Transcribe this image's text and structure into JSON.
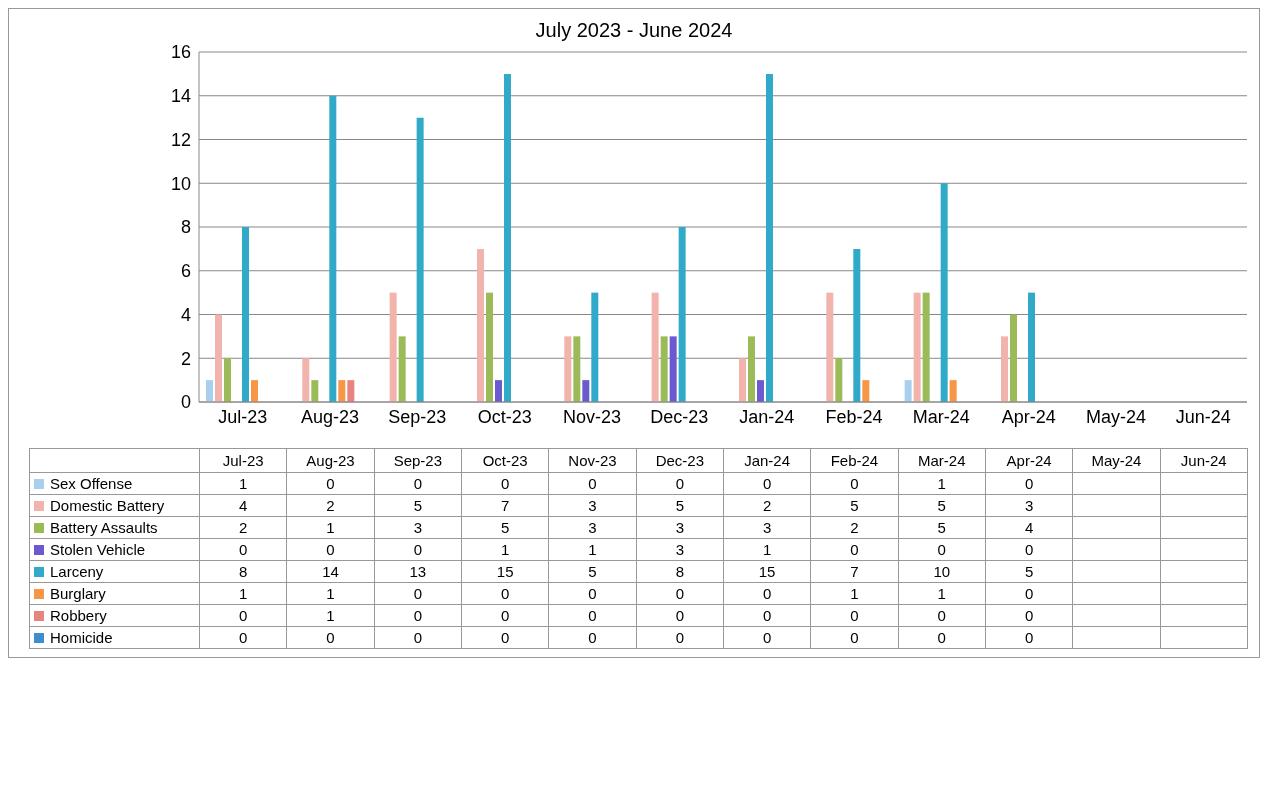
{
  "chart_data": {
    "type": "bar",
    "title": "July 2023 - June 2024",
    "categories": [
      "Jul-23",
      "Aug-23",
      "Sep-23",
      "Oct-23",
      "Nov-23",
      "Dec-23",
      "Jan-24",
      "Feb-24",
      "Mar-24",
      "Apr-24",
      "May-24",
      "Jun-24"
    ],
    "series": [
      {
        "name": "Sex Offense",
        "color": "#a9cfee",
        "values": [
          1,
          0,
          0,
          0,
          0,
          0,
          0,
          0,
          1,
          0,
          null,
          null
        ]
      },
      {
        "name": "Domestic Battery",
        "color": "#f2b3ad",
        "values": [
          4,
          2,
          5,
          7,
          3,
          5,
          2,
          5,
          5,
          3,
          null,
          null
        ]
      },
      {
        "name": "Battery Assaults",
        "color": "#9bbb59",
        "values": [
          2,
          1,
          3,
          5,
          3,
          3,
          3,
          2,
          5,
          4,
          null,
          null
        ]
      },
      {
        "name": "Stolen Vehicle",
        "color": "#6a5acd",
        "values": [
          0,
          0,
          0,
          1,
          1,
          3,
          1,
          0,
          0,
          0,
          null,
          null
        ]
      },
      {
        "name": "Larceny",
        "color": "#31a9c8",
        "values": [
          8,
          14,
          13,
          15,
          5,
          8,
          15,
          7,
          10,
          5,
          null,
          null
        ]
      },
      {
        "name": "Burglary",
        "color": "#f79646",
        "values": [
          1,
          1,
          0,
          0,
          0,
          0,
          0,
          1,
          1,
          0,
          null,
          null
        ]
      },
      {
        "name": "Robbery",
        "color": "#e8847f",
        "values": [
          0,
          1,
          0,
          0,
          0,
          0,
          0,
          0,
          0,
          0,
          null,
          null
        ]
      },
      {
        "name": "Homicide",
        "color": "#3b8fd0",
        "values": [
          0,
          0,
          0,
          0,
          0,
          0,
          0,
          0,
          0,
          0,
          null,
          null
        ]
      }
    ],
    "ylim": [
      0,
      16
    ],
    "yticks": [
      0,
      2,
      4,
      6,
      8,
      10,
      12,
      14,
      16
    ],
    "grid": "y",
    "legend": "bottom",
    "data_labels": true
  }
}
